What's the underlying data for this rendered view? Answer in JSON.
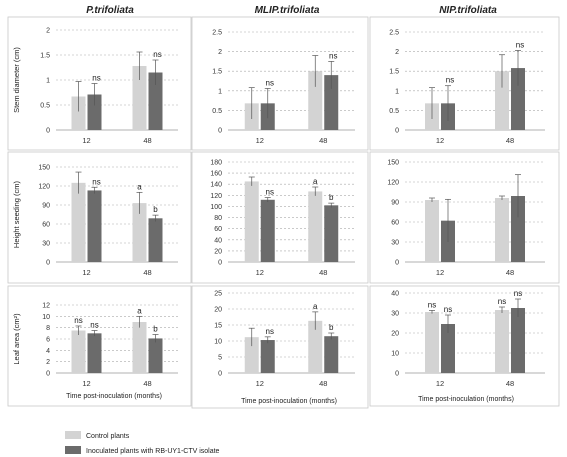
{
  "figure": {
    "legend": [
      {
        "label": "Control plants",
        "color": "#d3d3d3"
      },
      {
        "label": "Inoculated plants with RB-UY1-CTV isolate",
        "color": "#6b6b6b"
      }
    ],
    "column_titles": [
      "P.trifoliata",
      "MLIP.trifoliata",
      "NIP.trifoliata"
    ],
    "row_labels": [
      "Stem diameter (cm)",
      "Height seeding (cm)",
      "Leaf area (cm²)"
    ],
    "xlabel": "Time post-inoculation   (months)"
  },
  "chart_data": [
    {
      "id": "p-stem",
      "type": "bar",
      "column_title": "P.trifoliata",
      "ylabel": "Stem diameter (cm)",
      "categories": [
        "12",
        "48"
      ],
      "ylim": [
        0,
        2
      ],
      "yticks": [
        0,
        0.5,
        1,
        1.5,
        2
      ],
      "grid": true,
      "series": [
        {
          "name": "Control plants",
          "values": [
            0.67,
            1.28
          ],
          "errors": [
            0.3,
            0.28
          ]
        },
        {
          "name": "Inoculated plants with RB-UY1-CTV isolate",
          "values": [
            0.71,
            1.15
          ],
          "errors": [
            0.22,
            0.25
          ]
        }
      ],
      "significance": [
        "ns",
        "ns"
      ]
    },
    {
      "id": "m-stem",
      "type": "bar",
      "column_title": "MLIP.trifoliata",
      "ylabel": "",
      "categories": [
        "12",
        "48"
      ],
      "ylim": [
        0,
        2.5
      ],
      "yticks": [
        0,
        0.5,
        1,
        1.5,
        2,
        2.5
      ],
      "grid": true,
      "series": [
        {
          "name": "Control plants",
          "values": [
            0.68,
            1.5
          ],
          "errors": [
            0.4,
            0.4
          ]
        },
        {
          "name": "Inoculated plants with RB-UY1-CTV isolate",
          "values": [
            0.68,
            1.4
          ],
          "errors": [
            0.38,
            0.35
          ]
        }
      ],
      "significance": [
        "ns",
        "ns"
      ]
    },
    {
      "id": "n-stem",
      "type": "bar",
      "column_title": "NIP.trifoliata",
      "ylabel": "",
      "categories": [
        "12",
        "48"
      ],
      "ylim": [
        0,
        2.5
      ],
      "yticks": [
        0,
        0.5,
        1,
        1.5,
        2,
        2.5
      ],
      "grid": true,
      "series": [
        {
          "name": "Control plants",
          "values": [
            0.68,
            1.5
          ],
          "errors": [
            0.4,
            0.42
          ]
        },
        {
          "name": "Inoculated plants with RB-UY1-CTV isolate",
          "values": [
            0.68,
            1.58
          ],
          "errors": [
            0.45,
            0.45
          ]
        }
      ],
      "significance": [
        "ns",
        "ns"
      ]
    },
    {
      "id": "p-height",
      "type": "bar",
      "column_title": "",
      "ylabel": "Height seeding (cm)",
      "categories": [
        "12",
        "48"
      ],
      "ylim": [
        0,
        150
      ],
      "yticks": [
        0,
        30,
        60,
        90,
        120,
        150
      ],
      "grid": true,
      "series": [
        {
          "name": "Control plants",
          "values": [
            125,
            93
          ],
          "errors": [
            17,
            17
          ]
        },
        {
          "name": "Inoculated plants with RB-UY1-CTV isolate",
          "values": [
            113,
            69
          ],
          "errors": [
            5,
            5
          ]
        }
      ],
      "significance": [
        "ns",
        "a|b"
      ]
    },
    {
      "id": "m-height",
      "type": "bar",
      "column_title": "",
      "ylabel": "",
      "categories": [
        "12",
        "48"
      ],
      "ylim": [
        0,
        180
      ],
      "yticks": [
        0,
        20,
        40,
        60,
        80,
        100,
        120,
        140,
        160,
        180
      ],
      "grid": true,
      "series": [
        {
          "name": "Control plants",
          "values": [
            145,
            127
          ],
          "errors": [
            8,
            8
          ]
        },
        {
          "name": "Inoculated plants with RB-UY1-CTV isolate",
          "values": [
            112,
            102
          ],
          "errors": [
            4,
            4
          ]
        }
      ],
      "significance": [
        "ns",
        "a|b"
      ]
    },
    {
      "id": "n-height",
      "type": "bar",
      "column_title": "",
      "ylabel": "",
      "categories": [
        "12",
        "48"
      ],
      "ylim": [
        0,
        150
      ],
      "yticks": [
        0,
        30,
        60,
        90,
        120,
        150
      ],
      "grid": true,
      "series": [
        {
          "name": "Control plants",
          "values": [
            93,
            96
          ],
          "errors": [
            3,
            3
          ]
        },
        {
          "name": "Inoculated plants with RB-UY1-CTV isolate",
          "values": [
            62,
            99
          ],
          "errors": [
            32,
            32
          ]
        }
      ],
      "significance": [
        "",
        ""
      ]
    },
    {
      "id": "p-leaf",
      "type": "bar",
      "column_title": "",
      "ylabel": "Leaf area (cm²)",
      "categories": [
        "12",
        "48"
      ],
      "ylim": [
        0,
        12
      ],
      "yticks": [
        0,
        2,
        4,
        6,
        8,
        10,
        12
      ],
      "grid": true,
      "series": [
        {
          "name": "Control plants",
          "values": [
            7.5,
            9.0
          ],
          "errors": [
            0.8,
            1.0
          ]
        },
        {
          "name": "Inoculated plants with RB-UY1-CTV isolate",
          "values": [
            7.0,
            6.1
          ],
          "errors": [
            0.5,
            0.7
          ]
        }
      ],
      "significance": [
        "ns|ns",
        "a|b"
      ]
    },
    {
      "id": "m-leaf",
      "type": "bar",
      "column_title": "",
      "ylabel": "",
      "categories": [
        "12",
        "48"
      ],
      "ylim": [
        0,
        25
      ],
      "yticks": [
        0,
        5,
        10,
        15,
        20,
        25
      ],
      "grid": true,
      "series": [
        {
          "name": "Control plants",
          "values": [
            11.2,
            16.3
          ],
          "errors": [
            2.8,
            2.8
          ]
        },
        {
          "name": "Inoculated plants with RB-UY1-CTV isolate",
          "values": [
            10.3,
            11.5
          ],
          "errors": [
            1.0,
            1.0
          ]
        }
      ],
      "significance": [
        "ns",
        "a|b"
      ]
    },
    {
      "id": "n-leaf",
      "type": "bar",
      "column_title": "",
      "ylabel": "",
      "categories": [
        "12",
        "48"
      ],
      "ylim": [
        0,
        40
      ],
      "yticks": [
        0,
        10,
        20,
        30,
        40
      ],
      "grid": true,
      "series": [
        {
          "name": "Control plants",
          "values": [
            30.5,
            31.5
          ],
          "errors": [
            0.8,
            1.5
          ]
        },
        {
          "name": "Inoculated plants with RB-UY1-CTV isolate",
          "values": [
            24.5,
            32.5
          ],
          "errors": [
            4.5,
            4.5
          ]
        }
      ],
      "significance": [
        "ns|ns",
        "ns|ns"
      ]
    }
  ]
}
